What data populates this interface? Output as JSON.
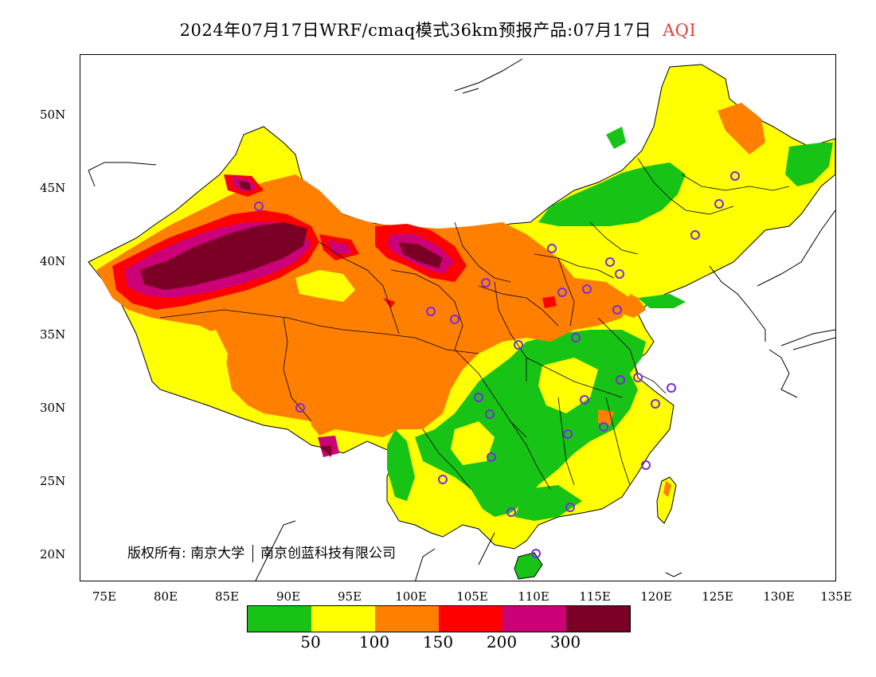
{
  "title": {
    "main": "2024年07月17日WRF/cmaq模式36km预报产品:07月17日",
    "variable": "AQI",
    "variable_color": "#e0403a"
  },
  "axes": {
    "lat_labels": [
      "50N",
      "45N",
      "40N",
      "35N",
      "30N",
      "25N",
      "20N"
    ],
    "lon_labels": [
      "75E",
      "80E",
      "85E",
      "90E",
      "95E",
      "100E",
      "105E",
      "110E",
      "115E",
      "120E",
      "125E",
      "130E",
      "135E"
    ]
  },
  "copyright": {
    "label": "版权所有:",
    "org1": "南京大学",
    "org2": "南京创蓝科技有限公司"
  },
  "legend": {
    "colors": [
      "#17c416",
      "#ffff00",
      "#ff7f00",
      "#ff0000",
      "#cc0077",
      "#7a0025"
    ],
    "labels": [
      "50",
      "100",
      "150",
      "200",
      "300"
    ]
  },
  "map": {
    "colors": {
      "green": "#17c416",
      "yellow": "#ffff00",
      "orange": "#ff7f00",
      "red": "#ff0000",
      "magenta": "#cc0077",
      "maroon": "#7a0025",
      "station": "#7b2be0"
    }
  }
}
